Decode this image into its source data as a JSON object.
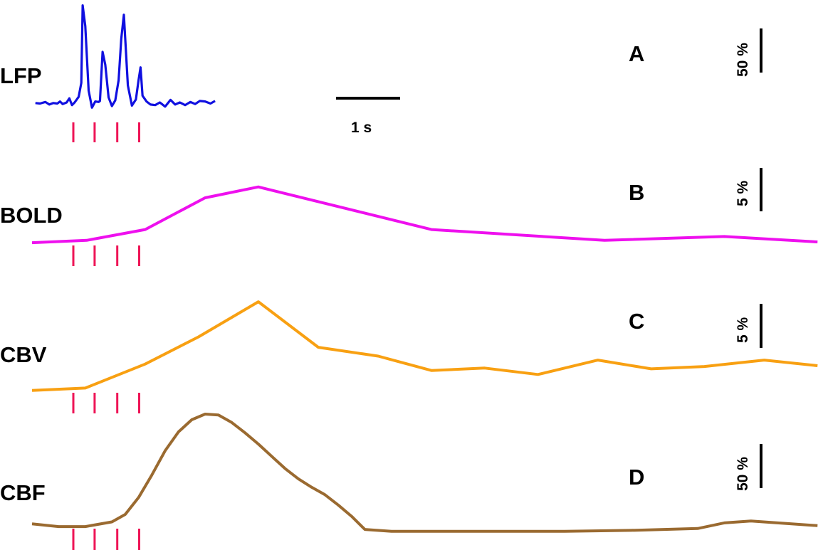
{
  "colors": {
    "LFP": "#1010e0",
    "BOLD": "#ee10ee",
    "CBV": "#f8a012",
    "CBF": "#9a6a30",
    "stimulus": "#ee1456",
    "scale": "#000000"
  },
  "time_scale": {
    "label": "1 s",
    "duration_s": 1
  },
  "chart_data": [
    {
      "type": "line",
      "panel": "A",
      "label": "LFP",
      "scale_bar": {
        "label": "50 %",
        "value": 50
      },
      "stimuli_s": [
        0.62,
        0.94,
        1.28,
        1.61
      ],
      "x": [
        0.05,
        0.12,
        0.2,
        0.26,
        0.32,
        0.38,
        0.42,
        0.46,
        0.52,
        0.56,
        0.6,
        0.64,
        0.7,
        0.74,
        0.76,
        0.8,
        0.85,
        0.9,
        0.95,
        1.0,
        1.02,
        1.06,
        1.1,
        1.15,
        1.2,
        1.25,
        1.3,
        1.34,
        1.38,
        1.44,
        1.5,
        1.56,
        1.6,
        1.63,
        1.66,
        1.72,
        1.78,
        1.85,
        1.92,
        2.0,
        2.08,
        2.15,
        2.22,
        2.3,
        2.38,
        2.45,
        2.52,
        2.6,
        2.68,
        2.75
      ],
      "values": [
        1,
        0,
        3,
        -2,
        1,
        0,
        4,
        -1,
        2,
        10,
        -3,
        2,
        13,
        40,
        190,
        150,
        25,
        -8,
        4,
        3,
        5,
        100,
        75,
        12,
        -5,
        6,
        45,
        125,
        172,
        35,
        -4,
        8,
        45,
        70,
        15,
        4,
        -2,
        -3,
        2,
        -6,
        7,
        -2,
        2,
        -3,
        3,
        -1,
        5,
        4,
        0,
        5
      ],
      "ylim": [
        -20,
        195
      ]
    },
    {
      "type": "line",
      "panel": "B",
      "label": "BOLD",
      "scale_bar": {
        "label": "5 %",
        "value": 5
      },
      "stimuli_s": [
        0.62,
        0.94,
        1.28,
        1.61
      ],
      "x": [
        0,
        0.82,
        1.7,
        2.6,
        3.4,
        6.0,
        8.6,
        10.4,
        11.8
      ],
      "values": [
        0,
        0.3,
        1.7,
        5.8,
        7.2,
        1.7,
        0.3,
        0.8,
        0.1
      ],
      "ylim": [
        -1,
        8
      ]
    },
    {
      "type": "line",
      "panel": "C",
      "label": "CBV",
      "scale_bar": {
        "label": "5 %",
        "value": 5
      },
      "stimuli_s": [
        0.62,
        0.94,
        1.28,
        1.61
      ],
      "x": [
        0,
        0.8,
        1.7,
        2.5,
        3.4,
        4.3,
        5.2,
        6.0,
        6.8,
        7.6,
        8.5,
        9.3,
        10.1,
        11.0,
        11.8
      ],
      "values": [
        0,
        0.3,
        3.3,
        6.7,
        11.1,
        5.4,
        4.3,
        2.5,
        2.8,
        2.0,
        3.8,
        2.7,
        3.0,
        3.8,
        3.1
      ],
      "ylim": [
        -1,
        12
      ]
    },
    {
      "type": "line",
      "panel": "D",
      "label": "CBF",
      "scale_bar": {
        "label": "50 %",
        "value": 50
      },
      "stimuli_s": [
        0.62,
        0.94,
        1.28,
        1.61
      ],
      "x": [
        0,
        0.4,
        0.8,
        1.2,
        1.4,
        1.6,
        1.8,
        2.0,
        2.2,
        2.4,
        2.6,
        2.8,
        3.0,
        3.2,
        3.4,
        3.6,
        3.8,
        4.0,
        4.2,
        4.4,
        4.6,
        4.8,
        5.0,
        5.4,
        5.8,
        6.2,
        7.0,
        8.0,
        9.0,
        10.0,
        10.4,
        10.8,
        11.2,
        11.8
      ],
      "values": [
        0,
        -3,
        -3,
        2,
        10,
        28,
        52,
        78,
        98,
        111,
        117,
        116,
        108,
        97,
        85,
        72,
        59,
        48,
        39,
        31,
        20,
        8,
        -6,
        -8,
        -8,
        -8,
        -8,
        -8,
        -7,
        -5,
        1,
        3,
        1,
        -2
      ],
      "ylim": [
        -12,
        120
      ]
    }
  ]
}
